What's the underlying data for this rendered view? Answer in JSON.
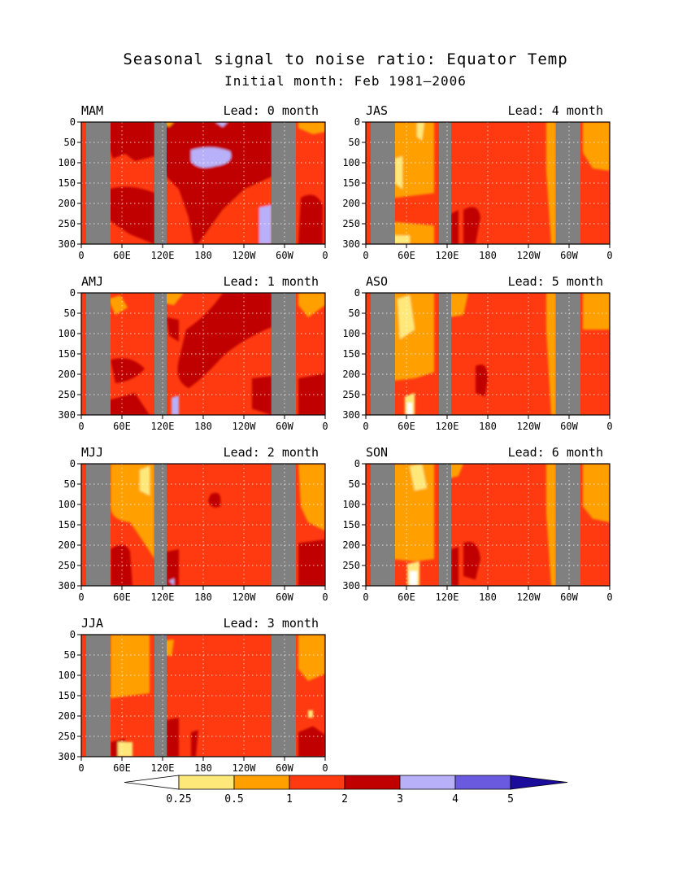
{
  "title": "Seasonal signal to noise ratio: Equator Temp",
  "subtitle": "Initial month: Feb 1981–2006",
  "colors": {
    "background": "#ffffff",
    "land": "#808080",
    "grid": "#ffffff",
    "levels": [
      "#ffffff",
      "#ffe87a",
      "#ffa000",
      "#ff3a10",
      "#c00000",
      "#b8b0f8",
      "#6a5ae0",
      "#1c0c9c"
    ]
  },
  "colorbar": {
    "labels": [
      "0.25",
      "0.5",
      "1",
      "2",
      "3",
      "4",
      "5"
    ]
  },
  "chart_data": [
    {
      "type": "heatmap",
      "season": "MAM",
      "lead_label": "Lead: 0 month",
      "lead_month": 0,
      "x_ticks": [
        "0",
        "60E",
        "120E",
        "180",
        "120W",
        "60W",
        "0"
      ],
      "y_ticks": [
        "0",
        "50",
        "100",
        "150",
        "200",
        "250",
        "300"
      ],
      "xlim": [
        0,
        360
      ],
      "ylim": [
        300,
        0
      ],
      "dominant_class": "1-2",
      "grid": true,
      "land_bands_lon": [
        [
          2,
          12
        ],
        [
          30,
          35
        ],
        [
          78,
          88
        ]
      ],
      "features": [
        {
          "level": "2-3",
          "where": "broad band from 120E to 90W, deepening eastward"
        },
        {
          "level": "3-4",
          "where": "patch near 150W at 50-100 m"
        },
        {
          "level": "2-3",
          "where": "western basin near 60E-90E, 0-100 m"
        }
      ]
    },
    {
      "type": "heatmap",
      "season": "AMJ",
      "lead_label": "Lead: 1 month",
      "lead_month": 1,
      "x_ticks": [
        "0",
        "60E",
        "120E",
        "180",
        "120W",
        "60W",
        "0"
      ],
      "y_ticks": [
        "0",
        "50",
        "100",
        "150",
        "200",
        "250",
        "300"
      ],
      "xlim": [
        0,
        360
      ],
      "ylim": [
        300,
        0
      ],
      "dominant_class": "1-2",
      "grid": true,
      "land_bands_lon": [
        [
          2,
          12
        ],
        [
          30,
          35
        ],
        [
          78,
          88
        ]
      ],
      "features": [
        {
          "level": "2-3",
          "where": "tilted tongue from 150E to 90W, surface to 200 m"
        },
        {
          "level": "0.5-1",
          "where": "small patches near 60E and 120E at surface"
        }
      ]
    },
    {
      "type": "heatmap",
      "season": "MJJ",
      "lead_label": "Lead: 2 month",
      "lead_month": 2,
      "x_ticks": [
        "0",
        "60E",
        "120E",
        "180",
        "120W",
        "60W",
        "0"
      ],
      "y_ticks": [
        "0",
        "50",
        "100",
        "150",
        "200",
        "250",
        "300"
      ],
      "xlim": [
        0,
        360
      ],
      "ylim": [
        300,
        0
      ],
      "dominant_class": "1-2",
      "grid": true,
      "land_bands_lon": [
        [
          2,
          12
        ],
        [
          30,
          35
        ],
        [
          78,
          88
        ]
      ],
      "features": [
        {
          "level": "0.5-1",
          "where": "Indian Ocean 45E-90E, upper 150 m"
        },
        {
          "level": "2-3",
          "where": "small patches at depth near 120E and 60W"
        }
      ]
    },
    {
      "type": "heatmap",
      "season": "JJA",
      "lead_label": "Lead: 3 month",
      "lead_month": 3,
      "x_ticks": [
        "0",
        "60E",
        "120E",
        "180",
        "120W",
        "60W",
        "0"
      ],
      "y_ticks": [
        "0",
        "50",
        "100",
        "150",
        "200",
        "250",
        "300"
      ],
      "xlim": [
        0,
        360
      ],
      "ylim": [
        300,
        0
      ],
      "dominant_class": "1-2",
      "grid": true,
      "land_bands_lon": [
        [
          2,
          12
        ],
        [
          30,
          35
        ],
        [
          78,
          88
        ]
      ],
      "features": [
        {
          "level": "0.5-1",
          "where": "Indian Ocean 45E-90E, surface to 160 m"
        },
        {
          "level": "0.5-1",
          "where": "Atlantic 60W-0, upper 100 m"
        }
      ]
    },
    {
      "type": "heatmap",
      "season": "JAS",
      "lead_label": "Lead: 4 month",
      "lead_month": 4,
      "x_ticks": [
        "0",
        "60E",
        "120E",
        "180",
        "120W",
        "60W",
        "0"
      ],
      "y_ticks": [
        "0",
        "50",
        "100",
        "150",
        "200",
        "250",
        "300"
      ],
      "xlim": [
        0,
        360
      ],
      "ylim": [
        300,
        0
      ],
      "dominant_class": "1-2",
      "grid": true,
      "land_bands_lon": [
        [
          2,
          12
        ],
        [
          30,
          35
        ],
        [
          78,
          88
        ]
      ],
      "features": [
        {
          "level": "0.5-1",
          "where": "Indian Ocean 40E-90E, full depth"
        },
        {
          "level": "0.5-1",
          "where": "eastern Pacific near 80W, surface to 300 m"
        }
      ]
    },
    {
      "type": "heatmap",
      "season": "ASO",
      "lead_label": "Lead: 5 month",
      "lead_month": 5,
      "x_ticks": [
        "0",
        "60E",
        "120E",
        "180",
        "120W",
        "60W",
        "0"
      ],
      "y_ticks": [
        "0",
        "50",
        "100",
        "150",
        "200",
        "250",
        "300"
      ],
      "xlim": [
        0,
        360
      ],
      "ylim": [
        300,
        0
      ],
      "dominant_class": "1-2",
      "grid": true,
      "land_bands_lon": [
        [
          2,
          12
        ],
        [
          30,
          35
        ],
        [
          78,
          88
        ]
      ],
      "features": [
        {
          "level": "0.5-1",
          "where": "Indian Ocean 40E-90E, upper 200 m"
        },
        {
          "level": "0.25-0.5",
          "where": "small patch near 60E at surface"
        }
      ]
    },
    {
      "type": "heatmap",
      "season": "SON",
      "lead_label": "Lead: 6 month",
      "lead_month": 6,
      "x_ticks": [
        "0",
        "60E",
        "120E",
        "180",
        "120W",
        "60W",
        "0"
      ],
      "y_ticks": [
        "0",
        "50",
        "100",
        "150",
        "200",
        "250",
        "300"
      ],
      "xlim": [
        0,
        360
      ],
      "ylim": [
        300,
        0
      ],
      "dominant_class": "1-2",
      "grid": true,
      "land_bands_lon": [
        [
          2,
          12
        ],
        [
          30,
          35
        ],
        [
          78,
          88
        ]
      ],
      "features": [
        {
          "level": "0.5-1",
          "where": "Indian Ocean 40E-90E, upper 240 m"
        },
        {
          "level": "0.5-1",
          "where": "Atlantic 60W-0, upper 150 m"
        }
      ]
    }
  ]
}
